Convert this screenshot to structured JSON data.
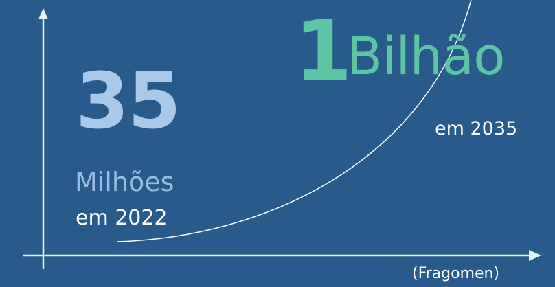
{
  "colors": {
    "background": "#285a8b",
    "axis": "#e6f3ee",
    "curve": "#ffffff",
    "left_number": "#a9c8ea",
    "right_number": "#5ec5a4"
  },
  "left_stat": {
    "number": "35",
    "unit": "Milhões",
    "year_label": "em 2022"
  },
  "right_stat": {
    "number": "1",
    "unit": "Bilhão",
    "year_label": "em 2035"
  },
  "source": "(Fragomen)"
}
